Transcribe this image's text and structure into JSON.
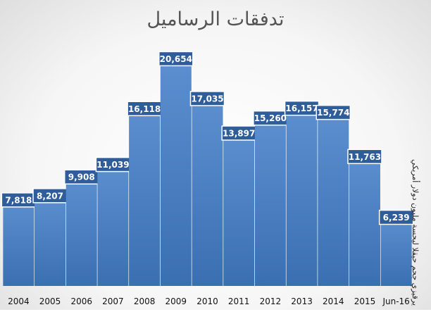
{
  "chart_data": {
    "type": "bar",
    "title": "تدفقات الرساميل",
    "ylabel": "يرقيزي جحم حيقلا ليحسة مليون دولار أمريكي",
    "xlabel": "",
    "categories": [
      "2004",
      "2005",
      "2006",
      "2007",
      "2008",
      "2009",
      "2010",
      "2011",
      "2012",
      "2013",
      "2014",
      "2015",
      "Jun-16"
    ],
    "values": [
      7818,
      8207,
      9908,
      11039,
      16118,
      20654,
      17035,
      13897,
      15260,
      16157,
      15774,
      11763,
      6239
    ],
    "value_labels": [
      "7,818",
      "8,207",
      "9,908",
      "11,039",
      "16,118",
      "20,654",
      "17,035",
      "13,897",
      "15,260",
      "16,157",
      "15,774",
      "11,763",
      "6,239"
    ],
    "ylim": [
      0,
      24000
    ],
    "grid": false,
    "legend": "none",
    "colors": {
      "bar_top": "#5b8fd0",
      "bar_bottom": "#3a6fb2",
      "label_box": "#2f5d9a"
    }
  }
}
